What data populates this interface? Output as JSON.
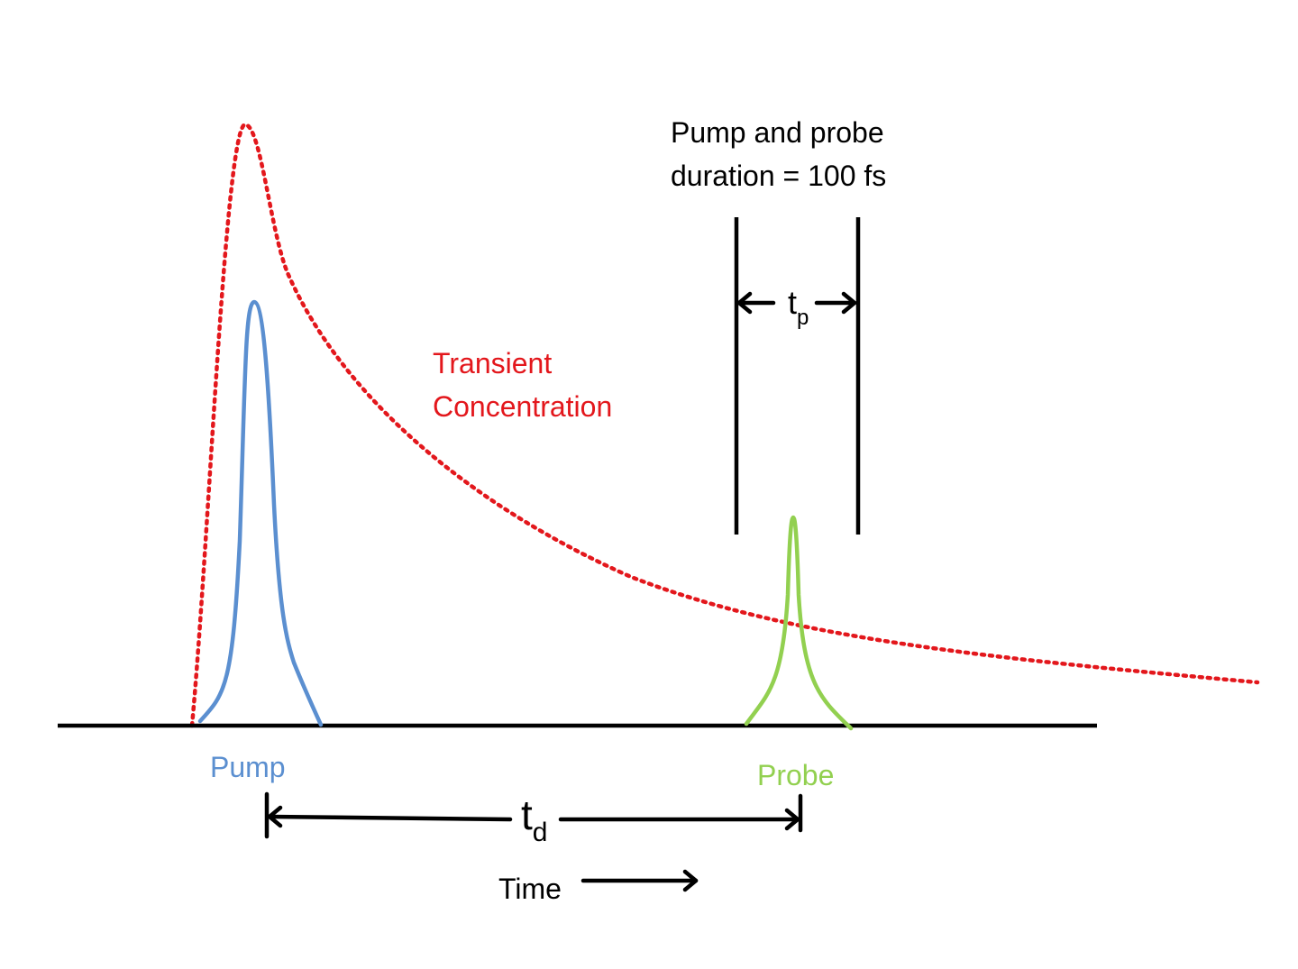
{
  "labels": {
    "pump": "Pump",
    "probe": "Probe",
    "transient_line1": "Transient",
    "transient_line2": "Concentration",
    "duration_line1": "Pump and probe",
    "duration_line2": "duration  = 100 fs",
    "tp_main": "t",
    "tp_sub": "p",
    "td_main": "t",
    "td_sub": "d",
    "time": "Time"
  },
  "colors": {
    "pump": "#5b8fd0",
    "probe": "#92d050",
    "transient": "#e3171c",
    "ink": "#000000"
  }
}
